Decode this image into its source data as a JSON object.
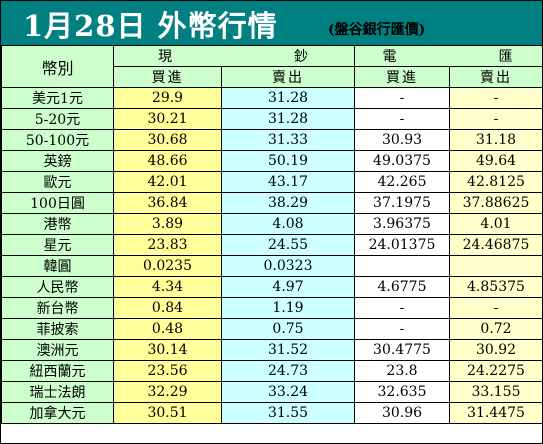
{
  "title": "1月28日 外幣行情",
  "source": "(盤谷銀行匯價)",
  "header": {
    "currency_col": "幣別",
    "cash_group": [
      "現",
      "鈔"
    ],
    "transfer_group": [
      "電",
      "匯"
    ],
    "buy": "買進",
    "sell": "賣出"
  },
  "rows": [
    {
      "currency": "美元1元",
      "cash_buy": "29.9",
      "cash_sell": "31.28",
      "tt_buy": "-",
      "tt_sell": "-"
    },
    {
      "currency": "5-20元",
      "cash_buy": "30.21",
      "cash_sell": "31.28",
      "tt_buy": "-",
      "tt_sell": "-"
    },
    {
      "currency": "50-100元",
      "cash_buy": "30.68",
      "cash_sell": "31.33",
      "tt_buy": "30.93",
      "tt_sell": "31.18"
    },
    {
      "currency": "英鎊",
      "cash_buy": "48.66",
      "cash_sell": "50.19",
      "tt_buy": "49.0375",
      "tt_sell": "49.64"
    },
    {
      "currency": "歐元",
      "cash_buy": "42.01",
      "cash_sell": "43.17",
      "tt_buy": "42.265",
      "tt_sell": "42.8125"
    },
    {
      "currency": "100日圓",
      "cash_buy": "36.84",
      "cash_sell": "38.29",
      "tt_buy": "37.1975",
      "tt_sell": "37.88625"
    },
    {
      "currency": "港幣",
      "cash_buy": "3.89",
      "cash_sell": "4.08",
      "tt_buy": "3.96375",
      "tt_sell": "4.01"
    },
    {
      "currency": "星元",
      "cash_buy": "23.83",
      "cash_sell": "24.55",
      "tt_buy": "24.01375",
      "tt_sell": "24.46875"
    },
    {
      "currency": "韓圓",
      "cash_buy": "0.0235",
      "cash_sell": "0.0323",
      "tt_buy": "",
      "tt_sell": ""
    },
    {
      "currency": "人民幣",
      "cash_buy": "4.34",
      "cash_sell": "4.97",
      "tt_buy": "4.6775",
      "tt_sell": "4.85375"
    },
    {
      "currency": "新台幣",
      "cash_buy": "0.84",
      "cash_sell": "1.19",
      "tt_buy": "-",
      "tt_sell": "-"
    },
    {
      "currency": "菲披索",
      "cash_buy": "0.48",
      "cash_sell": "0.75",
      "tt_buy": "-",
      "tt_sell": "0.72"
    },
    {
      "currency": "澳洲元",
      "cash_buy": "30.14",
      "cash_sell": "31.52",
      "tt_buy": "30.4775",
      "tt_sell": "30.92"
    },
    {
      "currency": "紐西蘭元",
      "cash_buy": "23.56",
      "cash_sell": "24.73",
      "tt_buy": "23.8",
      "tt_sell": "24.2275"
    },
    {
      "currency": "瑞士法朗",
      "cash_buy": "32.29",
      "cash_sell": "33.24",
      "tt_buy": "32.635",
      "tt_sell": "33.155"
    },
    {
      "currency": "加拿大元",
      "cash_buy": "30.51",
      "cash_sell": "31.55",
      "tt_buy": "30.96",
      "tt_sell": "31.4475"
    }
  ],
  "colors": {
    "title_bar": "#008080",
    "title_text": "#ffffff",
    "header_bg": "#ccffcc",
    "cash_buy_bg": "#ffff99",
    "cash_sell_bg": "#ccffff",
    "tt_buy_bg": "#ffffff",
    "tt_sell_bg": "#ffffcc"
  }
}
